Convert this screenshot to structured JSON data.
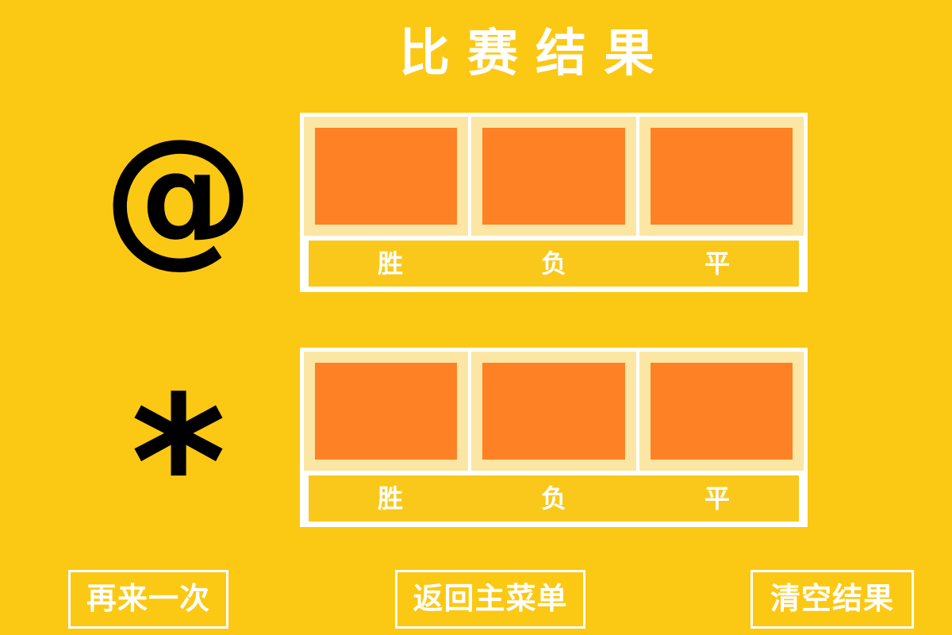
{
  "title": "比赛结果",
  "players": [
    {
      "symbol": "@",
      "labels": [
        "胜",
        "负",
        "平"
      ]
    },
    {
      "symbol": "*",
      "labels": [
        "胜",
        "负",
        "平"
      ]
    }
  ],
  "buttons": {
    "play_again": "再来一次",
    "main_menu": "返回主菜单",
    "clear_results": "清空结果"
  },
  "colors": {
    "background": "#FBC814",
    "cell_fill": "#FF8126",
    "cell_bg": "#FBE6A4",
    "border": "#FFFFFF",
    "text": "#FFFFFF"
  }
}
